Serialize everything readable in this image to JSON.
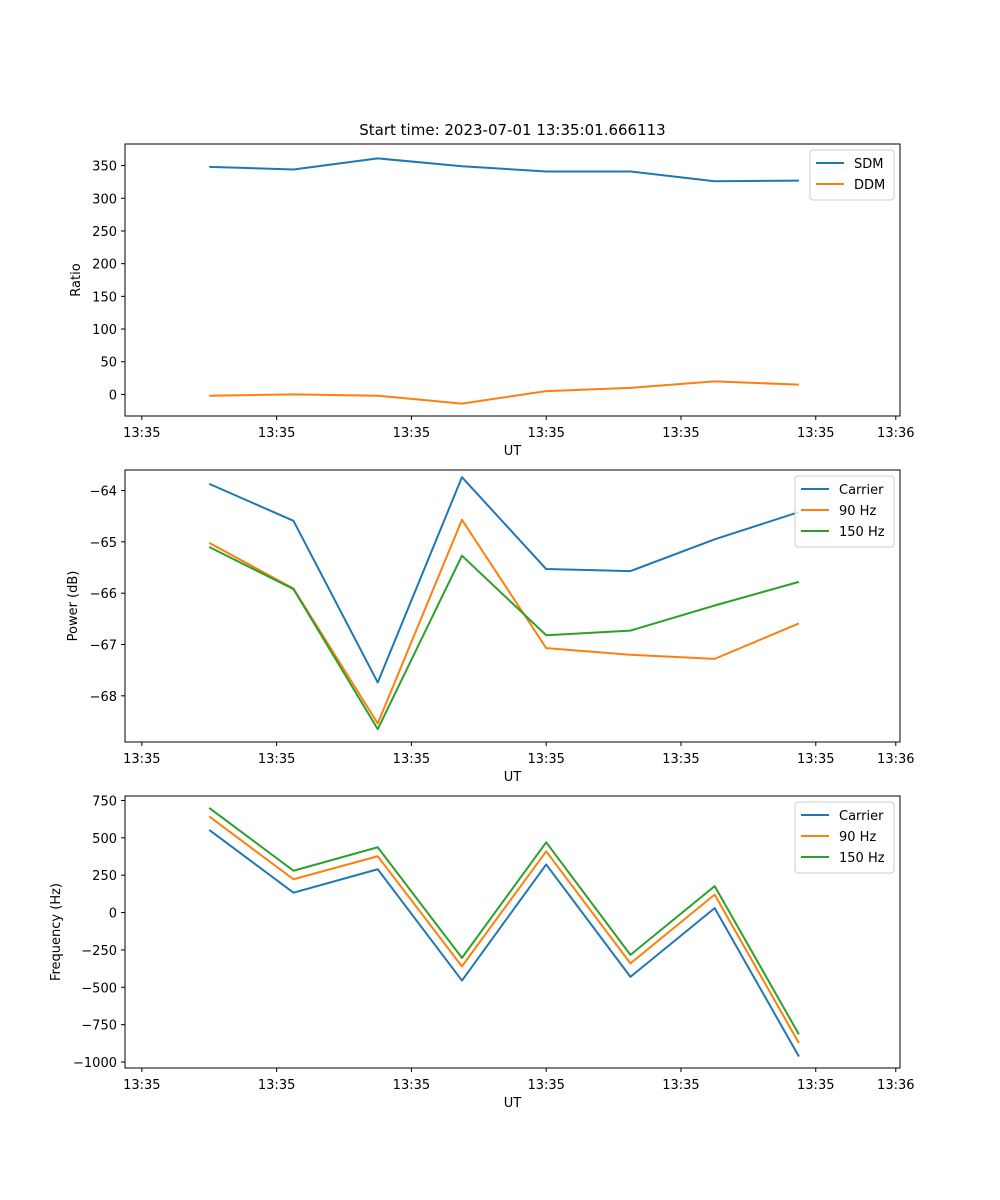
{
  "chart_data": [
    {
      "type": "line",
      "title": "Start time: 2023-07-01 13:35:01.666113",
      "xlabel": "UT",
      "ylabel": "Ratio",
      "xlim": [
        0,
        9.2
      ],
      "ylim": [
        -33,
        383
      ],
      "x": [
        1,
        2,
        3,
        4,
        5,
        6,
        7,
        8
      ],
      "xticks": [
        0.2,
        1.8,
        3.4,
        5.0,
        6.6,
        8.2,
        9.15
      ],
      "xtick_labels": [
        "13:35",
        "13:35",
        "13:35",
        "13:35",
        "13:35",
        "13:35",
        "13:36"
      ],
      "yticks": [
        0,
        50,
        100,
        150,
        200,
        250,
        300,
        350
      ],
      "ytick_labels": [
        "0",
        "50",
        "100",
        "150",
        "200",
        "250",
        "300",
        "350"
      ],
      "legend_position": "top-right",
      "series": [
        {
          "name": "SDM",
          "color": "#1f77b4",
          "values": [
            348,
            344,
            361,
            349,
            341,
            341,
            326,
            327
          ]
        },
        {
          "name": "DDM",
          "color": "#ff7f0e",
          "values": [
            -2,
            0,
            -2,
            -14,
            5,
            10,
            20,
            15
          ]
        }
      ]
    },
    {
      "type": "line",
      "title": "",
      "xlabel": "UT",
      "ylabel": "Power (dB)",
      "xlim": [
        0,
        9.2
      ],
      "ylim": [
        -68.9,
        -63.6
      ],
      "x": [
        1,
        2,
        3,
        4,
        5,
        6,
        7,
        8
      ],
      "xticks": [
        0.2,
        1.8,
        3.4,
        5.0,
        6.6,
        8.2,
        9.15
      ],
      "xtick_labels": [
        "13:35",
        "13:35",
        "13:35",
        "13:35",
        "13:35",
        "13:35",
        "13:36"
      ],
      "yticks": [
        -64,
        -65,
        -66,
        -67,
        -68
      ],
      "ytick_labels": [
        "−64",
        "−65",
        "−66",
        "−67",
        "−68"
      ],
      "legend_position": "top-right",
      "series": [
        {
          "name": "Carrier",
          "color": "#1f77b4",
          "values": [
            -63.87,
            -64.59,
            -67.74,
            -63.74,
            -65.53,
            -65.57,
            -64.95,
            -64.42
          ]
        },
        {
          "name": "90 Hz",
          "color": "#ff7f0e",
          "values": [
            -65.02,
            -65.91,
            -68.54,
            -64.57,
            -67.07,
            -67.2,
            -67.28,
            -66.59
          ]
        },
        {
          "name": "150 Hz",
          "color": "#2ca02c",
          "values": [
            -65.1,
            -65.92,
            -68.65,
            -65.27,
            -66.82,
            -66.73,
            -66.24,
            -65.78
          ]
        }
      ]
    },
    {
      "type": "line",
      "title": "",
      "xlabel": "UT",
      "ylabel": "Frequency (Hz)",
      "xlim": [
        0,
        9.2
      ],
      "ylim": [
        -1040,
        780
      ],
      "x": [
        1,
        2,
        3,
        4,
        5,
        6,
        7,
        8
      ],
      "xticks": [
        0.2,
        1.8,
        3.4,
        5.0,
        6.6,
        8.2,
        9.15
      ],
      "xtick_labels": [
        "13:35",
        "13:35",
        "13:35",
        "13:35",
        "13:35",
        "13:35",
        "13:36"
      ],
      "yticks": [
        750,
        500,
        250,
        0,
        -250,
        -500,
        -750,
        -1000
      ],
      "ytick_labels": [
        "750",
        "500",
        "250",
        "0",
        "−250",
        "−500",
        "−750",
        "−1000"
      ],
      "legend_position": "top-right",
      "series": [
        {
          "name": "Carrier",
          "color": "#1f77b4",
          "values": [
            553,
            133,
            290,
            -455,
            322,
            -430,
            30,
            -963
          ]
        },
        {
          "name": "90 Hz",
          "color": "#ff7f0e",
          "values": [
            643,
            223,
            377,
            -360,
            410,
            -340,
            120,
            -873
          ]
        },
        {
          "name": "150 Hz",
          "color": "#2ca02c",
          "values": [
            700,
            280,
            437,
            -303,
            470,
            -283,
            177,
            -815
          ]
        }
      ]
    }
  ]
}
